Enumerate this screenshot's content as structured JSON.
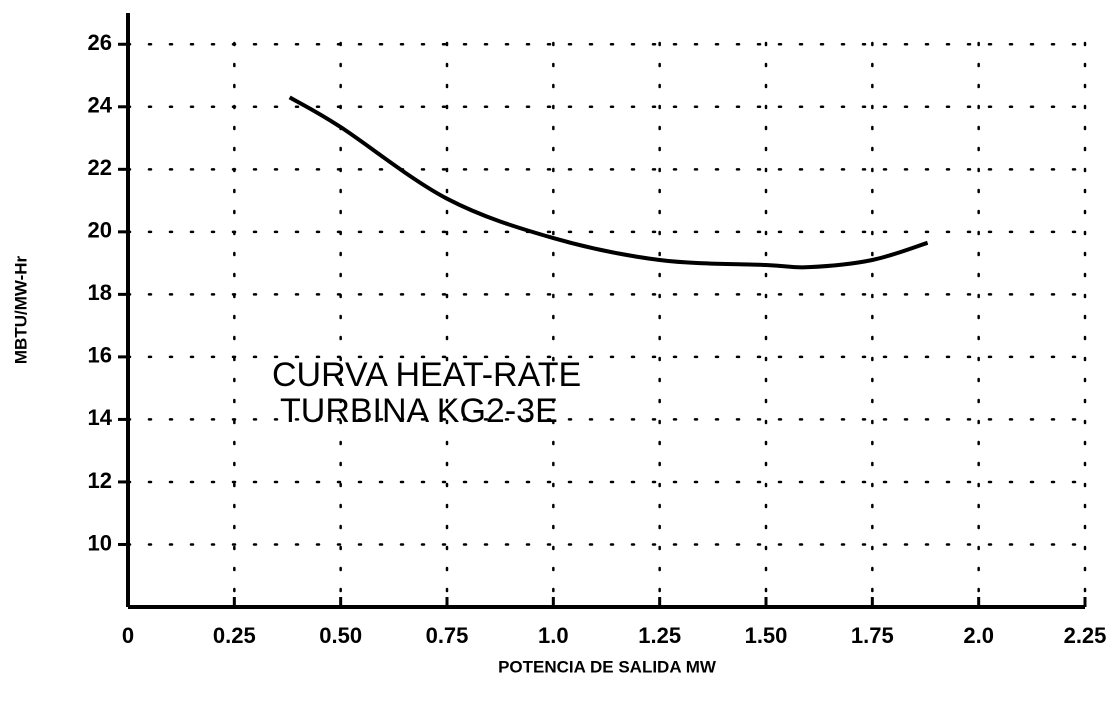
{
  "chart_data": {
    "type": "line",
    "x_label": "POTENCIA DE SALIDA MW",
    "y_label": "MBTU/MW-Hr",
    "annotations": [
      "CURVA HEAT-RATE",
      "TURBINA KG2-3E"
    ],
    "x": [
      0.38,
      0.5,
      0.75,
      1.0,
      1.25,
      1.5,
      1.6,
      1.75,
      1.88
    ],
    "series": [
      {
        "color": "#000000",
        "values": [
          24.3,
          23.35,
          21.06,
          19.8,
          19.1,
          18.94,
          18.87,
          19.1,
          19.65
        ]
      }
    ],
    "xlim": [
      0,
      2.25
    ],
    "xticks": [
      0,
      0.25,
      {
        "value": 0.5,
        "label": "0.50"
      },
      0.75,
      {
        "value": 1.0,
        "label": "1.0"
      },
      1.25,
      {
        "value": 1.5,
        "label": "1.50"
      },
      1.75,
      {
        "value": 2.0,
        "label": "2.0"
      },
      2.25
    ],
    "ylim": [
      8,
      27
    ],
    "yticks": [
      10,
      12,
      14,
      16,
      18,
      20,
      22,
      24,
      26
    ],
    "grid": true
  }
}
